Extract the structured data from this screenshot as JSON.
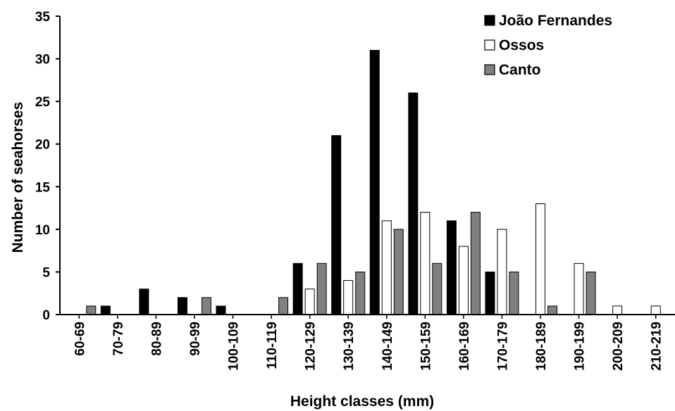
{
  "chart_data": {
    "type": "bar",
    "xlabel": "Height classes (mm)",
    "ylabel": "Number of seahorses",
    "ylim": [
      0,
      35
    ],
    "yticks": [
      "0",
      "5",
      "10",
      "15",
      "20",
      "25",
      "30",
      "35"
    ],
    "categories": [
      "60-69",
      "70-79",
      "80-89",
      "90-99",
      "100-109",
      "110-119",
      "120-129",
      "130-139",
      "140-149",
      "150-159",
      "160-169",
      "170-179",
      "180-189",
      "190-199",
      "200-209",
      "210-219"
    ],
    "legend_position": "top-right",
    "series": [
      {
        "name": "João Fernandes",
        "color": "#000000",
        "values": [
          0,
          1,
          3,
          2,
          1,
          0,
          6,
          21,
          31,
          26,
          11,
          5,
          0,
          0,
          0,
          0
        ]
      },
      {
        "name": "Ossos",
        "color": "#ffffff",
        "values": [
          0,
          0,
          0,
          0,
          0,
          0,
          3,
          4,
          11,
          12,
          8,
          10,
          13,
          6,
          1,
          1
        ]
      },
      {
        "name": "Canto",
        "color": "#808080",
        "values": [
          1,
          0,
          0,
          2,
          0,
          2,
          6,
          5,
          10,
          6,
          12,
          5,
          1,
          5,
          0,
          0
        ]
      }
    ]
  }
}
